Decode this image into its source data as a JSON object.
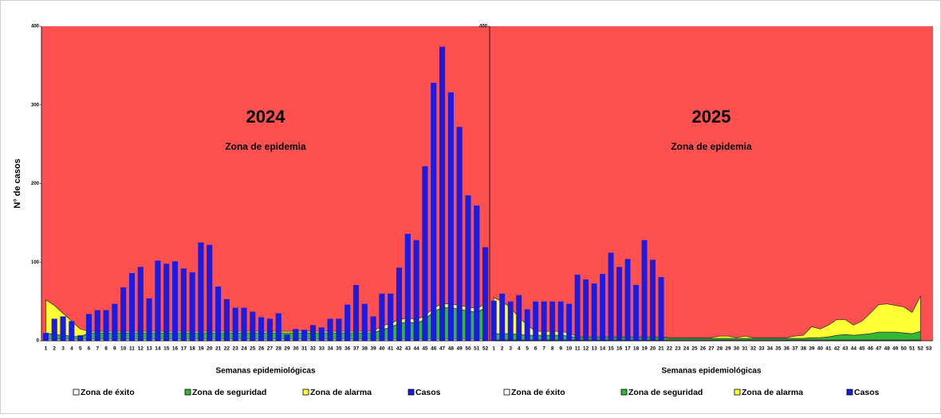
{
  "chart_data": [
    {
      "type": "bar",
      "title": "2024",
      "subtitle": "Zona de epidemia",
      "x_label": "Semanas epidemiológicas",
      "y_label": "N° de casos",
      "categories": [
        1,
        2,
        3,
        4,
        5,
        6,
        7,
        8,
        9,
        10,
        11,
        12,
        13,
        14,
        15,
        16,
        17,
        18,
        19,
        20,
        21,
        22,
        23,
        24,
        25,
        26,
        27,
        28,
        29,
        30,
        31,
        32,
        33,
        34,
        35,
        36,
        37,
        38,
        39,
        40,
        41,
        42,
        43,
        44,
        45,
        46,
        47,
        48,
        49,
        50,
        51,
        52
      ],
      "ylim": [
        0,
        400
      ],
      "yticks": [
        0,
        100,
        200,
        300,
        400
      ],
      "legend": "bottom",
      "series": [
        {
          "name": "Zona de éxito",
          "type": "area",
          "color": "#ffffff",
          "values": [
            2,
            2,
            2,
            2,
            2,
            2,
            2,
            2,
            2,
            2,
            2,
            2,
            2,
            2,
            2,
            2,
            2,
            2,
            2,
            2,
            2,
            2,
            2,
            2,
            2,
            2,
            2,
            2,
            2,
            2,
            2,
            2,
            2,
            2,
            2,
            2,
            2,
            2,
            2,
            2,
            2,
            2,
            2,
            2,
            2,
            2,
            2,
            2,
            2,
            2,
            2,
            2
          ]
        },
        {
          "name": "Zona de seguridad",
          "type": "area",
          "color": "#33b833",
          "values": [
            8,
            6,
            5,
            4,
            3,
            8,
            8,
            8,
            8,
            8,
            8,
            8,
            8,
            8,
            8,
            8,
            8,
            8,
            8,
            8,
            8,
            8,
            8,
            8,
            8,
            8,
            8,
            8,
            8,
            8,
            8,
            8,
            8,
            8,
            8,
            8,
            8,
            8,
            8,
            12,
            15,
            20,
            22,
            20,
            25,
            35,
            40,
            40,
            38,
            36,
            34,
            40
          ]
        },
        {
          "name": "Zona de alarma",
          "type": "area",
          "color": "#ffff33",
          "values": [
            42,
            37,
            28,
            19,
            10,
            2,
            2,
            2,
            2,
            2,
            2,
            2,
            2,
            2,
            2,
            2,
            2,
            2,
            2,
            2,
            2,
            2,
            2,
            2,
            2,
            2,
            2,
            2,
            2,
            2,
            2,
            2,
            2,
            2,
            2,
            2,
            2,
            2,
            2,
            5,
            5,
            5,
            5,
            5,
            5,
            5,
            5,
            5,
            5,
            5,
            5,
            5
          ]
        },
        {
          "name": "Casos",
          "type": "bar",
          "color": "#1c1ce0",
          "values": [
            10,
            28,
            31,
            25,
            7,
            34,
            39,
            39,
            47,
            68,
            86,
            94,
            54,
            102,
            98,
            101,
            92,
            87,
            125,
            122,
            69,
            53,
            42,
            42,
            37,
            30,
            28,
            35,
            8,
            15,
            14,
            20,
            17,
            28,
            28,
            46,
            71,
            47,
            31,
            60,
            60,
            93,
            136,
            128,
            222,
            328,
            374,
            316,
            272,
            185,
            172,
            119
          ]
        }
      ]
    },
    {
      "type": "bar",
      "title": "2025",
      "subtitle": "Zona de epidemia",
      "x_label": "Semanas epidemiológicas",
      "categories": [
        1,
        2,
        3,
        4,
        5,
        6,
        7,
        8,
        9,
        10,
        11,
        12,
        13,
        14,
        15,
        16,
        17,
        18,
        19,
        20,
        21,
        22,
        23,
        24,
        25,
        26,
        27,
        28,
        29,
        30,
        31,
        32,
        33,
        34,
        35,
        36,
        37,
        38,
        39,
        40,
        41,
        42,
        43,
        44,
        45,
        46,
        47,
        48,
        49,
        50,
        51,
        52,
        53
      ],
      "ylim": [
        0,
        400
      ],
      "yticks": [
        400
      ],
      "legend": "bottom",
      "series": [
        {
          "name": "Zona de éxito",
          "type": "area",
          "color": "#ffffff",
          "values": [
            1,
            1,
            1,
            1,
            1,
            1,
            1,
            1,
            1,
            1,
            1,
            1,
            1,
            1,
            1,
            1,
            1,
            1,
            1,
            1,
            1,
            1,
            1,
            1,
            1,
            1,
            1,
            1,
            1,
            1,
            1,
            1,
            1,
            1,
            1,
            1,
            1,
            1,
            1,
            1,
            1,
            1,
            1,
            1,
            1,
            1,
            1,
            1,
            1,
            1,
            1,
            1,
            null
          ]
        },
        {
          "name": "Zona de seguridad",
          "type": "area",
          "color": "#33b833",
          "values": [
            8,
            8,
            8,
            7,
            6,
            6,
            6,
            6,
            6,
            5,
            3,
            3,
            3,
            3,
            3,
            3,
            3,
            3,
            3,
            3,
            3,
            2,
            2,
            2,
            2,
            2,
            2,
            2,
            2,
            2,
            2,
            2,
            2,
            2,
            2,
            2,
            2,
            2,
            3,
            3,
            4,
            6,
            7,
            6,
            7,
            8,
            10,
            10,
            10,
            9,
            8,
            11,
            null
          ]
        },
        {
          "name": "Zona de alarma",
          "type": "area",
          "color": "#ffff33",
          "values": [
            46,
            41,
            33,
            22,
            13,
            5,
            5,
            5,
            5,
            4,
            1,
            1,
            1,
            1,
            1,
            1,
            1,
            1,
            1,
            1,
            1,
            1,
            1,
            1,
            1,
            1,
            1,
            3,
            3,
            1,
            3,
            1,
            1,
            1,
            1,
            1,
            3,
            4,
            14,
            11,
            15,
            20,
            19,
            13,
            17,
            26,
            35,
            36,
            34,
            33,
            27,
            45,
            null
          ]
        },
        {
          "name": "Casos",
          "type": "bar",
          "color": "#1c1ce0",
          "values": [
            51,
            60,
            50,
            58,
            40,
            50,
            50,
            50,
            50,
            47,
            84,
            78,
            73,
            85,
            112,
            94,
            104,
            71,
            128,
            103,
            81,
            null,
            null,
            null,
            null,
            null,
            null,
            null,
            null,
            null,
            null,
            null,
            null,
            null,
            null,
            null,
            null,
            null,
            null,
            null,
            null,
            null,
            null,
            null,
            null,
            null,
            null,
            null,
            null,
            null,
            null,
            null,
            null
          ]
        }
      ]
    }
  ]
}
